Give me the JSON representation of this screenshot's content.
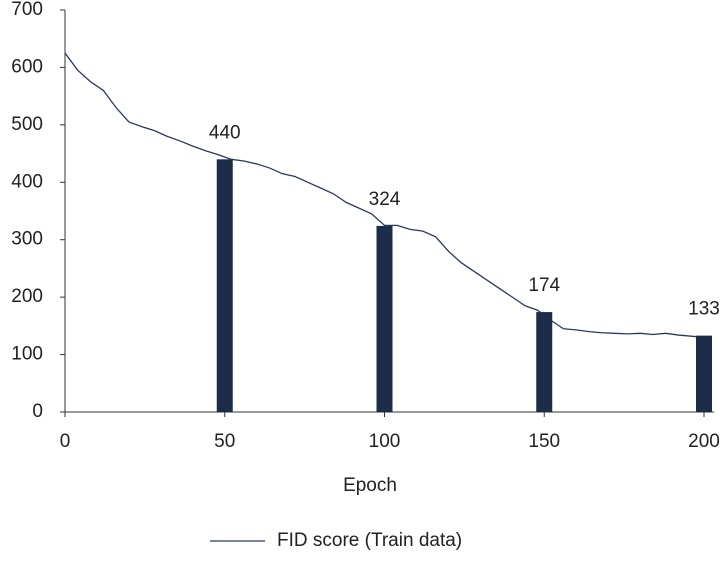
{
  "chart_data": {
    "type": "line",
    "x_label": "Epoch",
    "legend": "bottom",
    "xlim": [
      0,
      200
    ],
    "xticks": [
      0,
      50,
      100,
      150,
      200
    ],
    "ylim": [
      0,
      700
    ],
    "yticks": [
      0,
      100,
      200,
      300,
      400,
      500,
      600,
      700
    ],
    "series": [
      {
        "name": "FID score (Train data)",
        "type": "line",
        "color": "#2b3a5c",
        "x": [
          0,
          4,
          8,
          12,
          16,
          20,
          24,
          28,
          32,
          36,
          40,
          44,
          48,
          52,
          56,
          60,
          64,
          68,
          72,
          76,
          80,
          84,
          88,
          92,
          96,
          100,
          104,
          108,
          112,
          116,
          120,
          124,
          128,
          132,
          136,
          140,
          144,
          148,
          152,
          156,
          160,
          164,
          168,
          172,
          176,
          180,
          184,
          188,
          192,
          196,
          200
        ],
        "values": [
          625,
          595,
          575,
          560,
          530,
          505,
          497,
          490,
          480,
          472,
          463,
          455,
          448,
          440,
          437,
          432,
          425,
          415,
          410,
          400,
          390,
          380,
          365,
          355,
          345,
          325,
          325,
          318,
          315,
          305,
          280,
          260,
          245,
          230,
          215,
          200,
          185,
          177,
          160,
          145,
          143,
          140,
          138,
          137,
          136,
          137,
          135,
          137,
          134,
          132,
          130
        ]
      },
      {
        "type": "bar",
        "color": "#1c2d4a",
        "x": [
          50,
          100,
          150,
          200
        ],
        "values": [
          440,
          324,
          174,
          133
        ]
      }
    ]
  }
}
